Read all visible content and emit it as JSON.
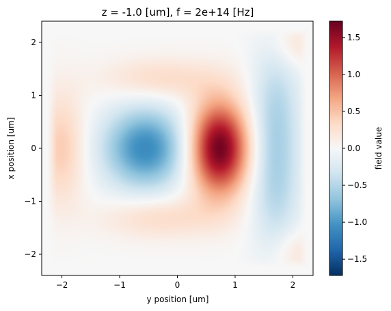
{
  "chart_data": {
    "type": "heatmap",
    "title": "z = -1.0 [um], f = 2e+14 [Hz]",
    "xlabel": "y position [um]",
    "ylabel": "x position [um]",
    "colorbar_label": "field value",
    "xlim": [
      -2.35,
      2.35
    ],
    "ylim": [
      -2.4,
      2.4
    ],
    "x_ticks": [
      -2,
      -1,
      0,
      1,
      2
    ],
    "x_tick_labels": [
      "−2",
      "−1",
      "0",
      "1",
      "2"
    ],
    "y_ticks": [
      -2,
      -1,
      0,
      1,
      2
    ],
    "y_tick_labels": [
      "−2",
      "−1",
      "0",
      "1",
      "2"
    ],
    "colorbar_range": [
      -1.72,
      1.72
    ],
    "colorbar_ticks": [
      1.5,
      1.0,
      0.5,
      0.0,
      -0.5,
      -1.0,
      -1.5
    ],
    "colorbar_tick_labels": [
      "1.5",
      "1.0",
      "0.5",
      "0.0",
      "−0.5",
      "−1.0",
      "−1.5"
    ],
    "colormap": "RdBu_r",
    "colormap_stops": [
      "#053061",
      "#2166ac",
      "#4393c3",
      "#92c5de",
      "#d1e5f0",
      "#f7f7f7",
      "#fddbc7",
      "#f4a582",
      "#d6604d",
      "#b2182b",
      "#67001f"
    ],
    "field_components": [
      {
        "y": 0.72,
        "x": 0.0,
        "sy": 0.36,
        "sx": 0.62,
        "amplitude": 1.72
      },
      {
        "y": -0.55,
        "x": 0.0,
        "sy": 0.52,
        "sx": 0.55,
        "amplitude": -1.1
      },
      {
        "y": -2.0,
        "x": 0.0,
        "sy": 0.28,
        "sx": 0.75,
        "amplitude": 0.45
      },
      {
        "y": -0.3,
        "x": 1.3,
        "sy": 0.7,
        "sx": 0.28,
        "amplitude": 0.35
      },
      {
        "y": -0.3,
        "x": -1.3,
        "sy": 0.7,
        "sx": 0.28,
        "amplitude": 0.35
      },
      {
        "y": 1.7,
        "x": 0.8,
        "sy": 0.3,
        "sx": 0.9,
        "amplitude": -0.45
      },
      {
        "y": 1.7,
        "x": -0.8,
        "sy": 0.3,
        "sx": 0.9,
        "amplitude": -0.45
      },
      {
        "y": 2.05,
        "x": 1.95,
        "sy": 0.3,
        "sx": 0.3,
        "amplitude": 0.25
      },
      {
        "y": 2.05,
        "x": -1.95,
        "sy": 0.3,
        "sx": 0.3,
        "amplitude": 0.25
      }
    ]
  }
}
